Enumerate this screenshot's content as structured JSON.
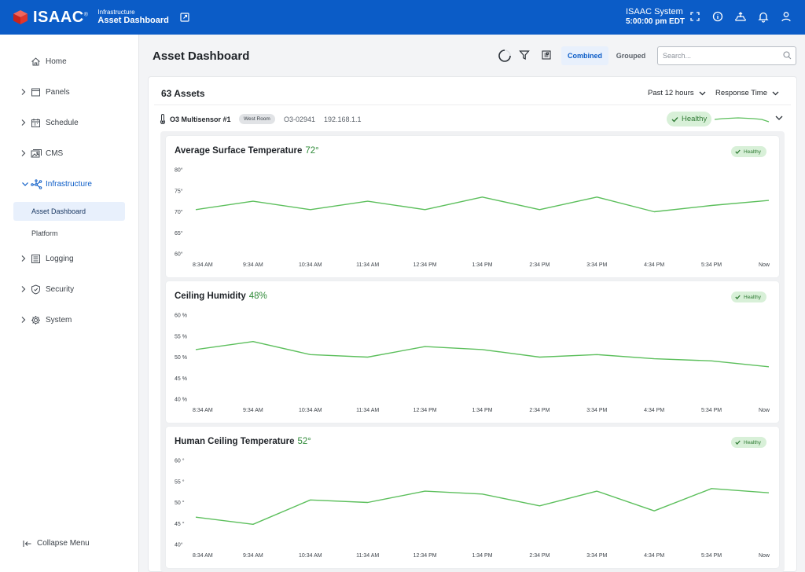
{
  "app": {
    "brand": "ISAAC",
    "breadcrumb_parent": "Infrastructure",
    "breadcrumb_current": "Asset Dashboard",
    "system_name": "ISAAC System",
    "system_time": "5:00:00 pm EDT",
    "brand_color": "#0b5cc7"
  },
  "sidebar": {
    "items": [
      {
        "label": "Home",
        "icon": "home-icon"
      },
      {
        "label": "Panels",
        "icon": "panels-icon"
      },
      {
        "label": "Schedule",
        "icon": "calendar-icon"
      },
      {
        "label": "CMS",
        "icon": "cms-icon"
      },
      {
        "label": "Infrastructure",
        "icon": "network-icon"
      },
      {
        "label": "Logging",
        "icon": "logging-icon"
      },
      {
        "label": "Security",
        "icon": "shield-icon"
      },
      {
        "label": "System",
        "icon": "gear-icon"
      }
    ],
    "sub_items": [
      {
        "label": "Asset Dashboard"
      },
      {
        "label": "Platform"
      }
    ],
    "collapse_label": "Collapse Menu"
  },
  "header": {
    "title": "Asset Dashboard",
    "view_combined": "Combined",
    "view_grouped": "Grouped",
    "search_placeholder": "Search..."
  },
  "assets": {
    "count_label": "63 Assets",
    "time_range": "Past 12 hours",
    "metric": "Response Time"
  },
  "sensor": {
    "name": "O3 Multisensor #1",
    "room": "West Room",
    "id": "O3-02941",
    "ip": "192.168.1.1",
    "status": "Healthy"
  },
  "chart_data": [
    {
      "type": "line",
      "title": "Average Surface Temperature",
      "current": "72°",
      "status": "Healthy",
      "categories": [
        "8:34 AM",
        "9:34 AM",
        "10:34 AM",
        "11:34 AM",
        "12:34 PM",
        "1:34 PM",
        "2:34 PM",
        "3:34 PM",
        "4:34 PM",
        "5:34 PM",
        "Now"
      ],
      "y_ticks": [
        "80°",
        "75°",
        "70°",
        "65°",
        "60°"
      ],
      "ylim": [
        60,
        80
      ],
      "values": [
        70.5,
        72.5,
        70.5,
        72.5,
        70.5,
        73.5,
        70.5,
        73.5,
        70.0,
        71.5,
        72.7
      ],
      "color": "#5cbf5c"
    },
    {
      "type": "line",
      "title": "Ceiling Humidity",
      "current": "48%",
      "status": "Healthy",
      "categories": [
        "8:34 AM",
        "9:34 AM",
        "10:34 AM",
        "11:34 AM",
        "12:34 PM",
        "1:34 PM",
        "2:34 PM",
        "3:34 PM",
        "4:34 PM",
        "5:34 PM",
        "Now"
      ],
      "y_ticks": [
        "60 %",
        "55 %",
        "50 %",
        "45 %",
        "40 %"
      ],
      "ylim": [
        40,
        60
      ],
      "values": [
        51.8,
        53.7,
        50.6,
        50.0,
        52.5,
        51.8,
        50.0,
        50.6,
        49.6,
        49.1,
        47.7
      ],
      "color": "#5cbf5c"
    },
    {
      "type": "line",
      "title": "Human Ceiling Temperature",
      "current": "52°",
      "status": "Healthy",
      "categories": [
        "8:34 AM",
        "9:34 AM",
        "10:34 AM",
        "11:34 AM",
        "12:34 PM",
        "1:34 PM",
        "2:34 PM",
        "3:34 PM",
        "4:34 PM",
        "5:34 PM",
        "Now"
      ],
      "y_ticks": [
        "60 °",
        "55 °",
        "50 °",
        "45 °",
        "40°"
      ],
      "ylim": [
        40,
        60
      ],
      "values": [
        46.5,
        44.8,
        50.6,
        50.0,
        52.7,
        52.0,
        49.2,
        52.7,
        48.0,
        53.3,
        52.3
      ],
      "color": "#5cbf5c"
    }
  ]
}
